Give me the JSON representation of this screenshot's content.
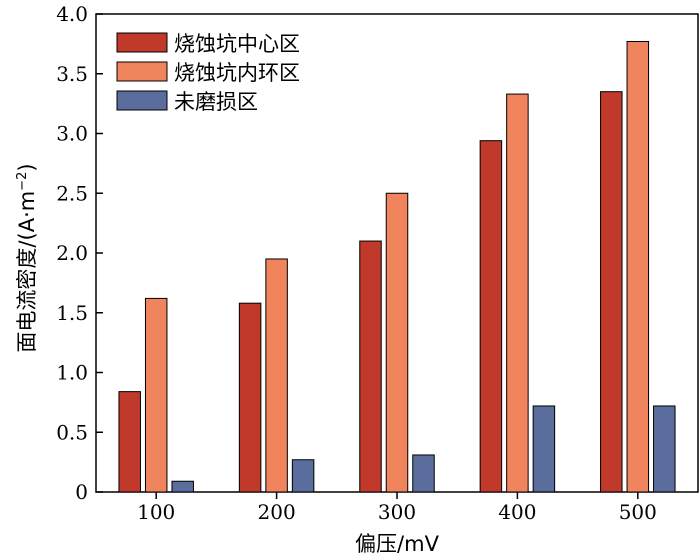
{
  "chart_data": {
    "type": "bar",
    "categories": [
      "100",
      "200",
      "300",
      "400",
      "500"
    ],
    "series": [
      {
        "name": "烧蚀坑中心区",
        "color": "#c0392b",
        "values": [
          0.84,
          1.58,
          2.1,
          2.94,
          3.35
        ]
      },
      {
        "name": "烧蚀坑内环区",
        "color": "#f0845c",
        "values": [
          1.62,
          1.95,
          2.5,
          3.33,
          3.77
        ]
      },
      {
        "name": "未磨损区",
        "color": "#5a6d9c",
        "values": [
          0.09,
          0.27,
          0.31,
          0.72,
          0.72
        ]
      }
    ],
    "xlabel": "偏压/mV",
    "ylabel_main": "面电流密度/(A·m",
    "ylabel_sup": "−2",
    "ylabel_end": ")",
    "ylim": [
      0,
      4.0
    ],
    "yticks": [
      "0",
      "0.5",
      "1.0",
      "1.5",
      "2.0",
      "2.5",
      "3.0",
      "3.5",
      "4.0"
    ],
    "legend_position": "top-left",
    "grid": false
  }
}
